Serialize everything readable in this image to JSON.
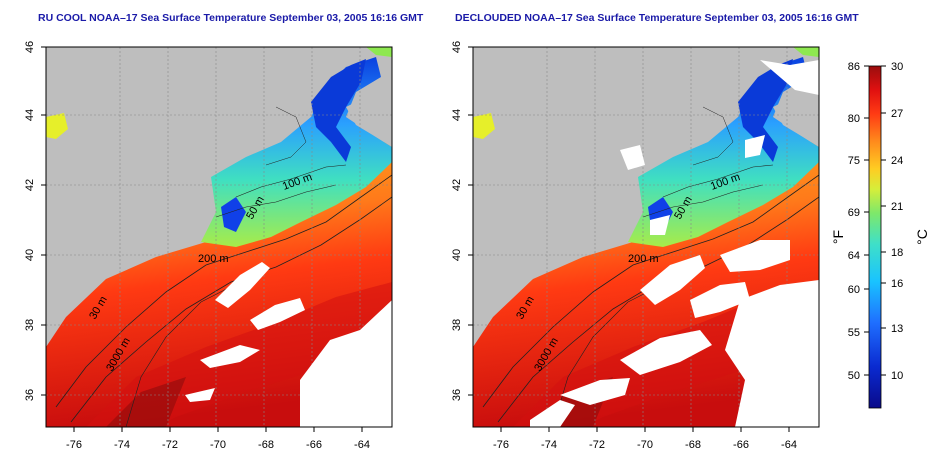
{
  "panels": [
    {
      "title": "RU COOL NOAA–17 Sea Surface Temperature September 03, 2005 16:16 GMT"
    },
    {
      "title": "DECLOUDED NOAA–17 Sea Surface Temperature September 03, 2005 16:16 GMT"
    }
  ],
  "map": {
    "lon_ticks": [
      "-76",
      "-74",
      "-72",
      "-70",
      "-68",
      "-66",
      "-64"
    ],
    "lat_ticks": [
      "46",
      "44",
      "42",
      "40",
      "38",
      "36"
    ],
    "contour_labels": [
      {
        "id": "c100",
        "text": "100 m"
      },
      {
        "id": "c50",
        "text": "50 m"
      },
      {
        "id": "c200",
        "text": "200 m"
      },
      {
        "id": "c30",
        "text": "30 m"
      },
      {
        "id": "c3000",
        "text": "3000 m"
      }
    ]
  },
  "colorbar": {
    "fahrenheit_label": "°F",
    "celsius_label": "°C",
    "fahrenheit_ticks": [
      "86",
      "80",
      "75",
      "69",
      "64",
      "60",
      "55",
      "50"
    ],
    "celsius_ticks": [
      "30",
      "27",
      "24",
      "21",
      "18",
      "16",
      "13",
      "10"
    ]
  },
  "colors": {
    "land": "#bebebe",
    "cloud": "#ffffff",
    "title": "#1a1aa8",
    "scale": [
      "#0a0a8a",
      "#0a2ad0",
      "#1f6fff",
      "#19c3ff",
      "#3fe0c8",
      "#7ee86a",
      "#d6ee3a",
      "#ffcc22",
      "#ff8a1c",
      "#ff3b14",
      "#e01010",
      "#9a0d0d"
    ]
  }
}
